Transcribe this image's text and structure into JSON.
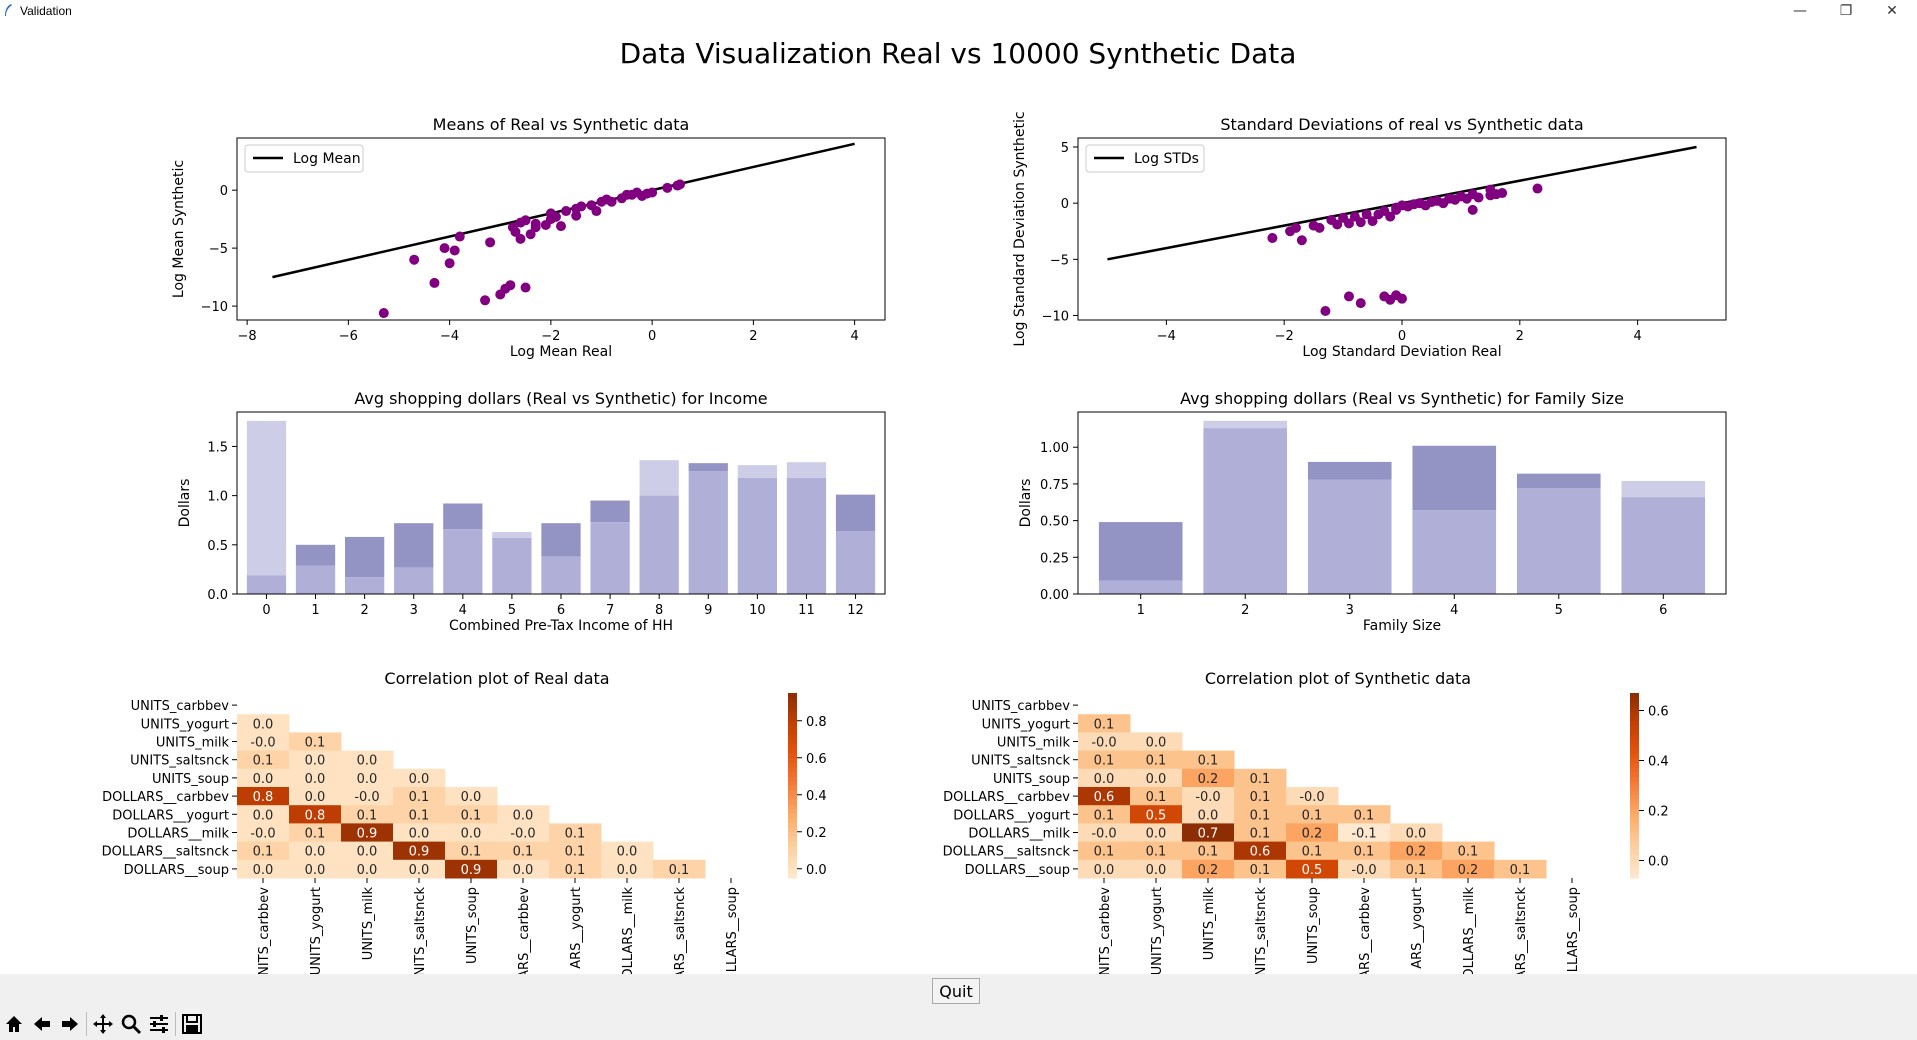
{
  "window": {
    "title": "Validation",
    "suptitle": "Data Visualization Real vs 10000 Synthetic Data",
    "quit_label": "Quit",
    "toolbar_icons": [
      "home-icon",
      "back-icon",
      "forward-icon",
      "pan-icon",
      "zoom-icon",
      "configure-subplots-icon",
      "save-icon"
    ]
  },
  "colors": {
    "scatter": "#800080",
    "real_bar": "#9494c4",
    "synthetic_bar": "#afafd8",
    "synthetic_over": "#cdcde8"
  },
  "chart_data": [
    {
      "type": "scatter",
      "title": "Means of Real vs Synthetic data",
      "xlabel": "Log Mean Real",
      "ylabel": "Log Mean Synthetic",
      "xlim": [
        -8.2,
        4.6
      ],
      "ylim": [
        -11.2,
        4.5
      ],
      "xticks": [
        -8,
        -6,
        -4,
        -2,
        0,
        2,
        4
      ],
      "yticks": [
        0,
        -5,
        -10
      ],
      "legend": "Log Mean",
      "legend_position": "upper-left",
      "line": {
        "x": [
          -7.5,
          4
        ],
        "y": [
          -7.5,
          4
        ]
      },
      "points": [
        [
          -5.3,
          -10.6
        ],
        [
          -4.7,
          -6.0
        ],
        [
          -4.3,
          -8.0
        ],
        [
          -4.1,
          -5.0
        ],
        [
          -4.0,
          -6.3
        ],
        [
          -3.9,
          -5.2
        ],
        [
          -3.8,
          -4.0
        ],
        [
          -3.3,
          -9.5
        ],
        [
          -3.2,
          -4.5
        ],
        [
          -3.0,
          -9.0
        ],
        [
          -2.9,
          -8.5
        ],
        [
          -2.8,
          -8.2
        ],
        [
          -2.5,
          -8.4
        ],
        [
          -2.6,
          -4.2
        ],
        [
          -2.75,
          -3.2
        ],
        [
          -2.6,
          -2.8
        ],
        [
          -2.7,
          -3.6
        ],
        [
          -2.4,
          -3.8
        ],
        [
          -2.3,
          -3.2
        ],
        [
          -2.5,
          -2.6
        ],
        [
          -2.3,
          -2.9
        ],
        [
          -2.1,
          -3.0
        ],
        [
          -2.0,
          -2.0
        ],
        [
          -1.9,
          -2.3
        ],
        [
          -2.0,
          -2.5
        ],
        [
          -1.8,
          -3.1
        ],
        [
          -1.7,
          -1.8
        ],
        [
          -1.5,
          -1.6
        ],
        [
          -1.4,
          -1.4
        ],
        [
          -1.5,
          -2.2
        ],
        [
          -1.2,
          -1.3
        ],
        [
          -1.1,
          -1.8
        ],
        [
          -1.0,
          -1.0
        ],
        [
          -0.9,
          -0.8
        ],
        [
          -0.8,
          -1.0
        ],
        [
          -0.6,
          -0.7
        ],
        [
          -0.5,
          -0.4
        ],
        [
          -0.4,
          -0.4
        ],
        [
          -0.3,
          -0.2
        ],
        [
          -0.2,
          -0.5
        ],
        [
          -0.1,
          -0.3
        ],
        [
          0.0,
          -0.2
        ],
        [
          0.3,
          0.2
        ],
        [
          0.5,
          0.4
        ],
        [
          0.55,
          0.5
        ]
      ]
    },
    {
      "type": "scatter",
      "title": "Standard Deviations of real vs Synthetic data",
      "xlabel": "Log Standard Deviation Real",
      "ylabel": "Log Standard Deviation Synthetic",
      "xlim": [
        -5.5,
        5.5
      ],
      "ylim": [
        -10.4,
        5.8
      ],
      "xticks": [
        -4,
        -2,
        0,
        2,
        4
      ],
      "yticks": [
        5,
        0,
        -5,
        -10
      ],
      "legend": "Log STDs",
      "legend_position": "upper-left",
      "line": {
        "x": [
          -5,
          5
        ],
        "y": [
          -5,
          5
        ]
      },
      "points": [
        [
          -2.2,
          -3.1
        ],
        [
          -1.9,
          -2.5
        ],
        [
          -1.8,
          -2.2
        ],
        [
          -1.7,
          -3.3
        ],
        [
          -1.5,
          -2.0
        ],
        [
          -1.4,
          -2.2
        ],
        [
          -1.3,
          -9.6
        ],
        [
          -1.2,
          -1.5
        ],
        [
          -1.0,
          -1.3
        ],
        [
          -1.1,
          -1.9
        ],
        [
          -0.9,
          -1.8
        ],
        [
          -0.8,
          -1.2
        ],
        [
          -0.7,
          -1.7
        ],
        [
          -0.6,
          -1.0
        ],
        [
          -0.5,
          -1.6
        ],
        [
          -0.4,
          -1.0
        ],
        [
          -0.3,
          -0.7
        ],
        [
          -0.2,
          -1.2
        ],
        [
          -0.1,
          -0.4
        ],
        [
          -0.1,
          -0.6
        ],
        [
          0.0,
          -0.2
        ],
        [
          0.1,
          -0.3
        ],
        [
          0.2,
          -0.1
        ],
        [
          0.3,
          0.0
        ],
        [
          0.4,
          -0.2
        ],
        [
          0.5,
          0.1
        ],
        [
          0.6,
          0.2
        ],
        [
          0.7,
          0.0
        ],
        [
          0.8,
          0.4
        ],
        [
          0.9,
          0.3
        ],
        [
          1.0,
          0.6
        ],
        [
          1.1,
          0.4
        ],
        [
          1.2,
          0.8
        ],
        [
          1.3,
          0.5
        ],
        [
          1.5,
          0.7
        ],
        [
          1.6,
          0.8
        ],
        [
          1.7,
          0.9
        ],
        [
          1.2,
          -0.6
        ],
        [
          1.5,
          1.2
        ],
        [
          2.3,
          1.3
        ],
        [
          -0.9,
          -8.3
        ],
        [
          -0.7,
          -8.9
        ],
        [
          -0.3,
          -8.3
        ],
        [
          -0.1,
          -8.2
        ],
        [
          0.0,
          -8.5
        ],
        [
          -0.2,
          -8.6
        ]
      ]
    },
    {
      "type": "bar",
      "title": "Avg shopping dollars (Real vs Synthetic) for Income",
      "xlabel": "Combined Pre-Tax Income of HH",
      "ylabel": "Dollars",
      "ylim": [
        0,
        1.85
      ],
      "yticks": [
        0.0,
        0.5,
        1.0,
        1.5
      ],
      "categories": [
        "0",
        "1",
        "2",
        "3",
        "4",
        "5",
        "6",
        "7",
        "8",
        "9",
        "10",
        "11",
        "12"
      ],
      "series": [
        {
          "values": [
            0.19,
            0.5,
            0.58,
            0.72,
            0.92,
            0.57,
            0.72,
            0.95,
            1.0,
            1.33,
            1.18,
            1.18,
            1.01
          ]
        },
        {
          "values": [
            1.76,
            0.29,
            0.17,
            0.27,
            0.66,
            0.63,
            0.38,
            0.73,
            1.36,
            1.25,
            1.31,
            1.34,
            0.64
          ]
        }
      ]
    },
    {
      "type": "bar",
      "title": "Avg shopping dollars (Real vs Synthetic) for Family Size",
      "xlabel": "Family Size",
      "ylabel": "Dollars",
      "ylim": [
        0,
        1.24
      ],
      "yticks": [
        0.0,
        0.25,
        0.5,
        0.75,
        1.0
      ],
      "categories": [
        "1",
        "2",
        "3",
        "4",
        "5",
        "6"
      ],
      "series": [
        {
          "values": [
            0.49,
            1.13,
            0.9,
            1.01,
            0.82,
            0.66
          ]
        },
        {
          "values": [
            0.09,
            1.18,
            0.78,
            0.57,
            0.72,
            0.77
          ]
        }
      ]
    },
    {
      "type": "heatmap",
      "title": "Correlation plot of Real data",
      "labels": [
        "UNITS_carbbev",
        "UNITS_yogurt",
        "UNITS_milk",
        "UNITS_saltsnck",
        "UNITS_soup",
        "DOLLARS__carbbev",
        "DOLLARS__yogurt",
        "DOLLARS__milk",
        "DOLLARS__saltsnck",
        "DOLLARS__soup"
      ],
      "xtick_labels": [
        "UNITS_carbbev",
        "UNITS_yogurt",
        "UNITS_milk",
        "UNITS_saltsnck",
        "UNITS_soup",
        "ARS__carbbev",
        "ARS__yogurt",
        "DLLARS__milk",
        "ARS__saltsnck",
        "LLARS__soup"
      ],
      "colorbar_ticks": [
        0.8,
        0.6,
        0.4,
        0.2,
        0.0
      ],
      "colorbar_range": [
        -0.05,
        0.95
      ],
      "values": [
        [],
        [
          "0.0"
        ],
        [
          "-0.0",
          "0.1"
        ],
        [
          "0.1",
          "0.0",
          "0.0"
        ],
        [
          "0.0",
          "0.0",
          "0.0",
          "0.0"
        ],
        [
          "0.8",
          "0.0",
          "-0.0",
          "0.1",
          "0.0"
        ],
        [
          "0.0",
          "0.8",
          "0.1",
          "0.1",
          "0.1",
          "0.0"
        ],
        [
          "-0.0",
          "0.1",
          "0.9",
          "0.0",
          "0.0",
          "-0.0",
          "0.1"
        ],
        [
          "0.1",
          "0.0",
          "0.0",
          "0.9",
          "0.1",
          "0.1",
          "0.1",
          "0.0"
        ],
        [
          "0.0",
          "0.0",
          "0.0",
          "0.0",
          "0.9",
          "0.0",
          "0.1",
          "0.0",
          "0.1"
        ]
      ]
    },
    {
      "type": "heatmap",
      "title": "Correlation plot of Synthetic data",
      "labels": [
        "UNITS_carbbev",
        "UNITS_yogurt",
        "UNITS_milk",
        "UNITS_saltsnck",
        "UNITS_soup",
        "DOLLARS__carbbev",
        "DOLLARS__yogurt",
        "DOLLARS__milk",
        "DOLLARS__saltsnck",
        "DOLLARS__soup"
      ],
      "xtick_labels": [
        "NITS_carbbev",
        "UNITS_yogurt",
        "UNITS_milk",
        "NITS_saltsnck",
        "UNITS_soup",
        "ARS__carbbev",
        "ARS__yogurt",
        "DOLLARS__milk",
        "ARS__saltsnck",
        "LLARS__soup"
      ],
      "colorbar_ticks": [
        0.6,
        0.4,
        0.2,
        0.0
      ],
      "colorbar_range": [
        -0.07,
        0.67
      ],
      "values": [
        [],
        [
          "0.1"
        ],
        [
          "-0.0",
          "0.0"
        ],
        [
          "0.1",
          "0.1",
          "0.1"
        ],
        [
          "0.0",
          "0.0",
          "0.2",
          "0.1"
        ],
        [
          "0.6",
          "0.1",
          "-0.0",
          "0.1",
          "-0.0"
        ],
        [
          "0.1",
          "0.5",
          "0.0",
          "0.1",
          "0.1",
          "0.1"
        ],
        [
          "-0.0",
          "0.0",
          "0.7",
          "0.1",
          "0.2",
          "-0.1",
          "0.0"
        ],
        [
          "0.1",
          "0.1",
          "0.1",
          "0.6",
          "0.1",
          "0.1",
          "0.2",
          "0.1"
        ],
        [
          "0.0",
          "0.0",
          "0.2",
          "0.1",
          "0.5",
          "-0.0",
          "0.1",
          "0.2",
          "0.1"
        ]
      ]
    }
  ]
}
